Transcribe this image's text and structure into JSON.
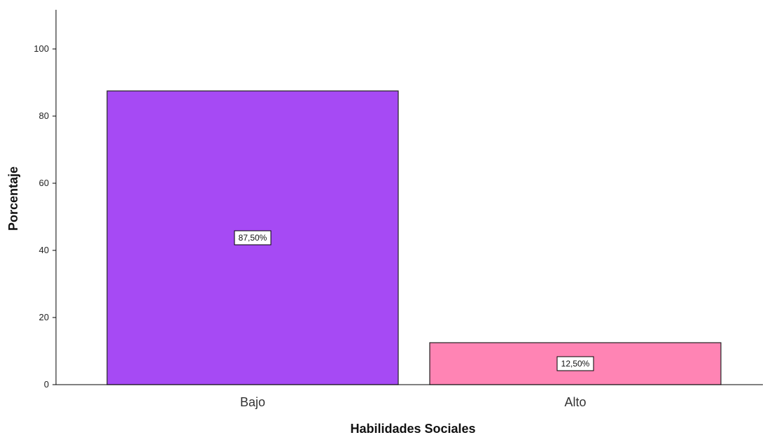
{
  "chart_data": {
    "type": "bar",
    "categories": [
      "Bajo",
      "Alto"
    ],
    "values": [
      87.5,
      12.5
    ],
    "data_labels": [
      "87,50%",
      "12,50%"
    ],
    "colors": [
      "#a64af4",
      "#ff84b4"
    ],
    "xlabel": "Habilidades Sociales",
    "ylabel": "Porcentaje",
    "ylim": [
      0,
      110
    ],
    "yticks": [
      0,
      20,
      40,
      60,
      80,
      100
    ],
    "grid": false,
    "legend": "none"
  }
}
